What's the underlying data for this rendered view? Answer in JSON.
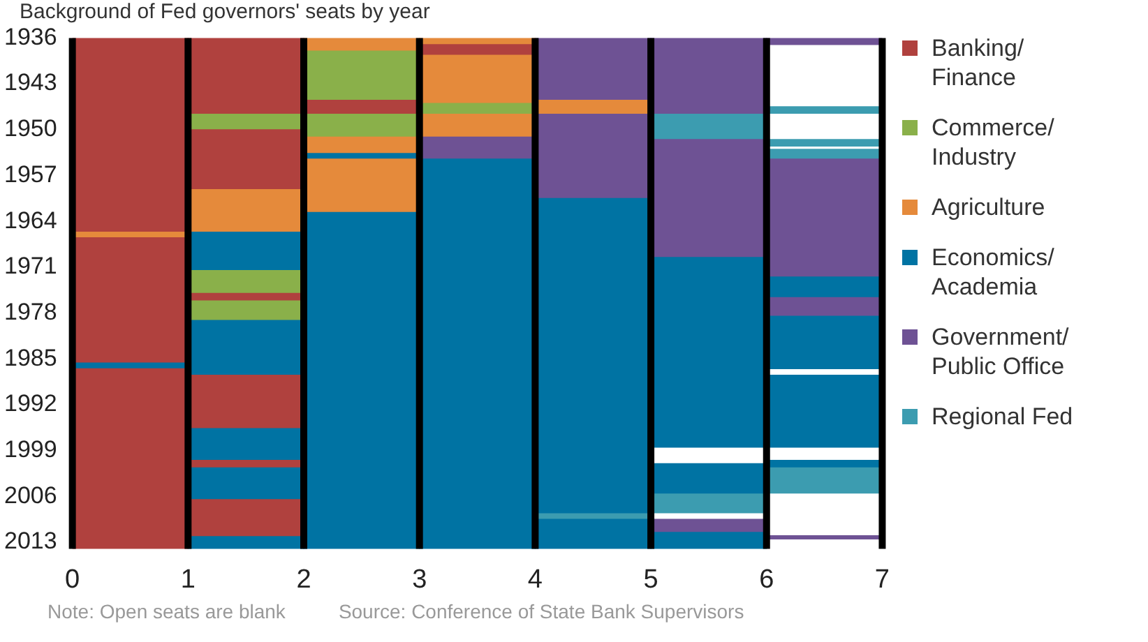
{
  "chart_data": {
    "type": "bar",
    "title": "Background of Fed governors' seats by year",
    "xlim": [
      0,
      7
    ],
    "xticks": [
      0,
      1,
      2,
      3,
      4,
      5,
      6,
      7
    ],
    "ylim": [
      2014,
      1936
    ],
    "yticks": [
      1936,
      1943,
      1950,
      1957,
      1964,
      1971,
      1978,
      1985,
      1992,
      1999,
      2006,
      2013
    ],
    "grid": "x",
    "legend": "right",
    "annotations": [
      "Note: Open seats are blank",
      "Source: Conference of State Bank Supervisors"
    ],
    "series": [
      {
        "name": "Banking/Finance",
        "color": "#b0413e",
        "x": [
          0.5,
          1.5,
          2.5,
          3.5
        ],
        "base": [
          1936,
          1936,
          1945.5,
          1937
        ],
        "values": [
          29.5,
          11.5,
          2,
          1.5
        ]
      },
      {
        "color": "#b0413e",
        "x": [
          0.5,
          1.5
        ],
        "base": [
          1966.5,
          1950
        ],
        "values": [
          19,
          9
        ]
      },
      {
        "color": "#b0413e",
        "x": [
          0.5,
          1.5
        ],
        "base": [
          1986.5,
          1975
        ],
        "values": [
          27.5,
          1
        ]
      },
      {
        "color": "#b0413e",
        "x": [
          1.5
        ],
        "base": [
          1987.5
        ],
        "values": [
          8
        ]
      },
      {
        "color": "#b0413e",
        "x": [
          1.5
        ],
        "base": [
          2000.5
        ],
        "values": [
          1
        ]
      },
      {
        "color": "#b0413e",
        "x": [
          1.5
        ],
        "base": [
          2006.5
        ],
        "values": [
          5.5
        ]
      },
      {
        "name": "Commerce/Industry",
        "color": "#8ab04a",
        "x": [
          1.5,
          2.5,
          3.5
        ],
        "base": [
          1947.5,
          1938,
          1946
        ],
        "values": [
          2.5,
          7.5,
          1.5
        ]
      },
      {
        "color": "#8ab04a",
        "x": [
          1.5,
          2.5
        ],
        "base": [
          1971.5,
          1947.5
        ],
        "values": [
          3.5,
          3.5
        ]
      },
      {
        "color": "#8ab04a",
        "x": [
          1.5
        ],
        "base": [
          1976
        ],
        "values": [
          3
        ]
      },
      {
        "name": "Agriculture",
        "color": "#e58a3b",
        "x": [
          0.5,
          1.5,
          2.5,
          3.5,
          4.5
        ],
        "base": [
          1965.5,
          1959,
          1936,
          1936,
          1945.5
        ],
        "values": [
          1,
          6.5,
          2,
          1,
          2
        ]
      },
      {
        "color": "#e58a3b",
        "x": [
          2.5,
          3.5
        ],
        "base": [
          1951,
          1938.5
        ],
        "values": [
          2.5,
          7.5
        ]
      },
      {
        "color": "#e58a3b",
        "x": [
          2.5,
          3.5
        ],
        "base": [
          1954.5,
          1947.5
        ],
        "values": [
          8,
          3.5
        ]
      },
      {
        "name": "Economics/Academia",
        "color": "#0073a3",
        "x": [
          0.5,
          1.5,
          2.5,
          3.5,
          4.5,
          5.5,
          6.5
        ],
        "base": [
          1985.5,
          1965.5,
          1953.5,
          1954.5,
          1960.5,
          1969.5,
          1972.5
        ],
        "values": [
          1,
          6,
          1,
          59.5,
          48,
          29,
          3
        ]
      },
      {
        "color": "#0073a3",
        "x": [
          1.5,
          2.5,
          4.5,
          5.5,
          6.5
        ],
        "base": [
          1979,
          1962.5,
          2009.5,
          2001,
          1978.5
        ],
        "values": [
          8.5,
          51.5,
          4.5,
          4.5,
          8
        ]
      },
      {
        "color": "#0073a3",
        "x": [
          1.5,
          5.5,
          6.5
        ],
        "base": [
          1995.5,
          2011.5,
          1987.5
        ],
        "values": [
          5,
          2.5,
          11
        ]
      },
      {
        "color": "#0073a3",
        "x": [
          1.5,
          6.5
        ],
        "base": [
          2001.5,
          2000.5
        ],
        "values": [
          5,
          1
        ]
      },
      {
        "color": "#0073a3",
        "x": [
          1.5
        ],
        "base": [
          2012
        ],
        "values": [
          2
        ]
      },
      {
        "name": "Government/Public Office",
        "color": "#6e5294",
        "x": [
          3.5,
          4.5,
          5.5,
          6.5
        ],
        "base": [
          1951,
          1936,
          1936,
          1936
        ],
        "values": [
          3.5,
          9.5,
          11.5,
          1
        ]
      },
      {
        "color": "#6e5294",
        "x": [
          4.5,
          5.5,
          6.5
        ],
        "base": [
          1947.5,
          1951.5,
          1954.5
        ],
        "values": [
          13,
          18,
          18
        ]
      },
      {
        "color": "#6e5294",
        "x": [
          5.5,
          6.5
        ],
        "base": [
          2009.5,
          1975.5
        ],
        "values": [
          2,
          3
        ]
      },
      {
        "color": "#6e5294",
        "x": [
          6.5
        ],
        "base": [
          2012
        ],
        "values": [
          0.5
        ]
      },
      {
        "name": "Regional Fed",
        "color": "#3c9cb0",
        "x": [
          4.5,
          5.5,
          6.5
        ],
        "base": [
          2008.5,
          1947.5,
          1946.5
        ],
        "values": [
          1,
          4,
          1
        ]
      },
      {
        "color": "#3c9cb0",
        "x": [
          5.5,
          6.5
        ],
        "base": [
          2005.5,
          1951.5
        ],
        "values": [
          3,
          1
        ]
      },
      {
        "color": "#3c9cb0",
        "x": [
          6.5
        ],
        "base": [
          1953
        ],
        "values": [
          1.5
        ]
      },
      {
        "color": "#3c9cb0",
        "x": [
          6.5
        ],
        "base": [
          2001.5
        ],
        "values": [
          4
        ]
      }
    ]
  }
}
